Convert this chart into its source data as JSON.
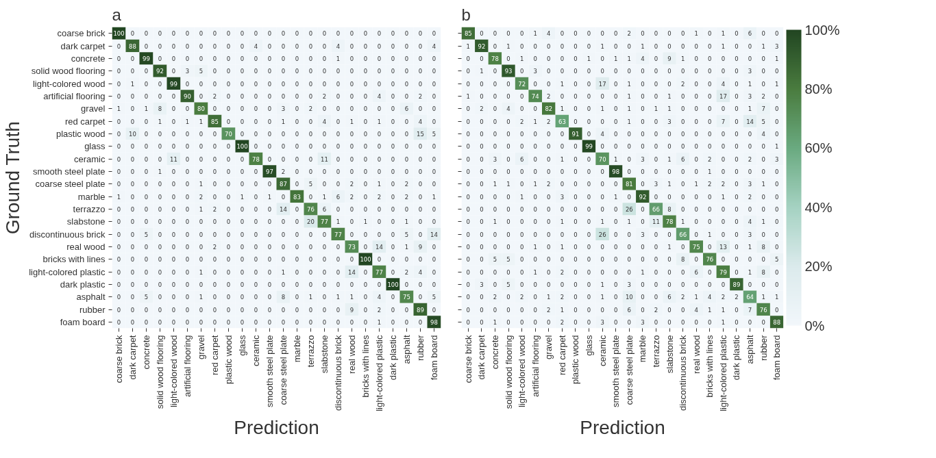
{
  "chart_data": [
    {
      "type": "heatmap",
      "title": "a",
      "xlabel": "Prediction",
      "ylabel": "Ground Truth",
      "data_labels": true,
      "categories": [
        "coarse brick",
        "dark carpet",
        "concrete",
        "solid wood flooring",
        "light-colored wood",
        "artificial flooring",
        "gravel",
        "red carpet",
        "plastic wood",
        "glass",
        "ceramic",
        "smooth steel plate",
        "coarse steel plate",
        "marble",
        "terrazzo",
        "slabstone",
        "discontinuous brick",
        "real wood",
        "bricks with lines",
        "light-colored plastic",
        "dark plastic",
        "asphalt",
        "rubber",
        "foam board"
      ],
      "y_categories": [
        "coarse brick",
        "dark carpet",
        "concrete",
        "solid wood flooring",
        "light-colored wood",
        "artificial flooring",
        "gravel",
        "red carpet",
        "plastic wood",
        "glass",
        "ceramic",
        "smooth steel plate",
        "coarse steel plate",
        "marble",
        "terrazzo",
        "slabstone",
        "discontinuous brick",
        "real wood",
        "bricks with lines",
        "light-colored plastic",
        "dark plastic",
        "asphalt",
        "rubber",
        "foam board"
      ],
      "cells": [
        [
          100,
          0,
          0,
          0,
          0,
          0,
          0,
          0,
          0,
          0,
          0,
          0,
          0,
          0,
          0,
          0,
          0,
          0,
          0,
          0,
          0,
          0,
          0,
          0
        ],
        [
          0,
          88,
          0,
          0,
          0,
          0,
          0,
          0,
          0,
          0,
          4,
          0,
          0,
          0,
          0,
          0,
          4,
          0,
          0,
          0,
          0,
          0,
          0,
          4
        ],
        [
          0,
          0,
          99,
          0,
          0,
          0,
          0,
          0,
          0,
          0,
          0,
          0,
          0,
          0,
          0,
          0,
          1,
          0,
          0,
          0,
          0,
          0,
          0,
          0
        ],
        [
          0,
          0,
          0,
          92,
          0,
          3,
          5,
          0,
          0,
          0,
          0,
          0,
          0,
          0,
          0,
          0,
          0,
          0,
          0,
          0,
          0,
          0,
          0,
          0
        ],
        [
          0,
          1,
          0,
          0,
          99,
          0,
          0,
          0,
          0,
          0,
          0,
          0,
          0,
          0,
          0,
          0,
          0,
          0,
          0,
          0,
          0,
          0,
          0,
          0
        ],
        [
          0,
          0,
          0,
          0,
          0,
          90,
          0,
          2,
          0,
          0,
          0,
          0,
          0,
          0,
          0,
          2,
          0,
          0,
          0,
          4,
          0,
          0,
          2,
          0
        ],
        [
          1,
          0,
          1,
          8,
          0,
          0,
          80,
          0,
          0,
          0,
          0,
          0,
          3,
          0,
          2,
          0,
          0,
          0,
          0,
          0,
          0,
          6,
          0,
          0
        ],
        [
          0,
          0,
          0,
          1,
          0,
          1,
          1,
          85,
          0,
          0,
          0,
          0,
          1,
          0,
          0,
          4,
          0,
          1,
          0,
          1,
          0,
          0,
          4,
          0
        ],
        [
          0,
          10,
          0,
          0,
          0,
          0,
          0,
          0,
          70,
          0,
          0,
          0,
          0,
          0,
          0,
          0,
          0,
          0,
          0,
          0,
          0,
          0,
          15,
          5
        ],
        [
          0,
          0,
          0,
          0,
          0,
          0,
          0,
          0,
          0,
          100,
          0,
          0,
          0,
          0,
          0,
          0,
          0,
          0,
          0,
          0,
          0,
          0,
          0,
          0
        ],
        [
          0,
          0,
          0,
          0,
          11,
          0,
          0,
          0,
          0,
          0,
          78,
          0,
          0,
          0,
          0,
          11,
          0,
          0,
          0,
          0,
          0,
          0,
          0,
          0
        ],
        [
          0,
          0,
          0,
          1,
          0,
          0,
          0,
          0,
          0,
          0,
          0,
          97,
          2,
          0,
          0,
          0,
          0,
          0,
          0,
          0,
          0,
          0,
          0,
          0
        ],
        [
          0,
          0,
          0,
          0,
          0,
          0,
          1,
          0,
          0,
          0,
          0,
          0,
          87,
          0,
          5,
          0,
          0,
          2,
          0,
          1,
          0,
          2,
          0,
          0
        ],
        [
          1,
          0,
          0,
          0,
          0,
          0,
          2,
          0,
          0,
          1,
          0,
          1,
          0,
          83,
          0,
          1,
          6,
          2,
          0,
          2,
          0,
          2,
          0,
          1
        ],
        [
          0,
          0,
          0,
          0,
          0,
          0,
          1,
          2,
          0,
          0,
          0,
          0,
          14,
          0,
          76,
          6,
          0,
          0,
          0,
          0,
          0,
          0,
          0,
          0
        ],
        [
          0,
          0,
          0,
          0,
          0,
          0,
          0,
          0,
          0,
          0,
          0,
          0,
          0,
          0,
          20,
          77,
          1,
          0,
          1,
          0,
          0,
          1,
          0,
          0
        ],
        [
          0,
          0,
          5,
          0,
          0,
          0,
          0,
          0,
          0,
          0,
          0,
          0,
          0,
          0,
          0,
          0,
          77,
          0,
          0,
          0,
          0,
          5,
          0,
          14
        ],
        [
          0,
          0,
          0,
          0,
          0,
          0,
          0,
          2,
          0,
          0,
          0,
          0,
          0,
          0,
          0,
          0,
          0,
          73,
          0,
          14,
          0,
          1,
          9,
          0
        ],
        [
          0,
          0,
          0,
          0,
          0,
          0,
          0,
          0,
          0,
          0,
          0,
          0,
          0,
          0,
          0,
          0,
          0,
          0,
          100,
          0,
          0,
          0,
          0,
          0
        ],
        [
          0,
          0,
          0,
          0,
          0,
          0,
          1,
          0,
          0,
          0,
          0,
          0,
          1,
          0,
          0,
          0,
          0,
          14,
          0,
          77,
          0,
          2,
          4,
          0
        ],
        [
          0,
          0,
          0,
          0,
          0,
          0,
          0,
          0,
          0,
          0,
          0,
          0,
          0,
          0,
          0,
          0,
          0,
          0,
          0,
          0,
          100,
          0,
          0,
          0
        ],
        [
          0,
          0,
          5,
          0,
          0,
          0,
          1,
          0,
          0,
          0,
          0,
          0,
          8,
          0,
          1,
          0,
          1,
          1,
          0,
          4,
          0,
          75,
          0,
          5
        ],
        [
          0,
          0,
          0,
          0,
          0,
          0,
          0,
          0,
          0,
          0,
          0,
          0,
          0,
          0,
          0,
          0,
          0,
          9,
          0,
          2,
          0,
          0,
          89,
          0
        ],
        [
          0,
          0,
          0,
          0,
          0,
          0,
          0,
          0,
          0,
          0,
          0,
          0,
          0,
          0,
          0,
          0,
          0,
          0,
          0,
          1,
          0,
          0,
          0,
          98
        ]
      ]
    },
    {
      "type": "heatmap",
      "title": "b",
      "xlabel": "Prediction",
      "data_labels": true,
      "tick_labels": "x",
      "categories": [
        "coarse brick",
        "dark carpet",
        "concrete",
        "solid wood flooring",
        "light-colored wood",
        "artificial flooring",
        "gravel",
        "red carpet",
        "plastic wood",
        "glass",
        "ceramic",
        "smooth steel plate",
        "coarse steel plate",
        "marble",
        "terrazzo",
        "slabstone",
        "discontinuous brick",
        "real wood",
        "bricks with lines",
        "light-colored plastic",
        "dark plastic",
        "asphalt",
        "rubber",
        "foam board"
      ],
      "y_categories": [
        null,
        null,
        null,
        null,
        null,
        null,
        null,
        null,
        null,
        null,
        null,
        null,
        null,
        null,
        null,
        null,
        null,
        null,
        null,
        null,
        null,
        null,
        null,
        null
      ],
      "clim": [
        0,
        100
      ],
      "cticks": [
        {
          "value": 0,
          "label": "0%"
        },
        {
          "value": 20,
          "label": "20%"
        },
        {
          "value": 40,
          "label": "40%"
        },
        {
          "value": 60,
          "label": "60%"
        },
        {
          "value": 80,
          "label": "80%"
        },
        {
          "value": 100,
          "label": "100%"
        }
      ],
      "cells": [
        [
          85,
          0,
          0,
          0,
          0,
          1,
          4,
          0,
          0,
          0,
          0,
          0,
          2,
          0,
          0,
          0,
          0,
          1,
          0,
          1,
          0,
          6,
          0,
          0
        ],
        [
          1,
          92,
          0,
          1,
          0,
          0,
          0,
          0,
          0,
          0,
          1,
          0,
          0,
          1,
          0,
          0,
          0,
          0,
          0,
          1,
          0,
          0,
          1,
          3
        ],
        [
          0,
          0,
          78,
          0,
          1,
          0,
          0,
          0,
          0,
          1,
          0,
          1,
          1,
          4,
          0,
          9,
          1,
          0,
          0,
          0,
          0,
          0,
          0,
          1
        ],
        [
          0,
          1,
          0,
          93,
          0,
          3,
          0,
          0,
          0,
          0,
          0,
          0,
          0,
          0,
          0,
          0,
          0,
          0,
          0,
          0,
          0,
          3,
          0,
          0
        ],
        [
          0,
          0,
          0,
          0,
          72,
          0,
          0,
          1,
          0,
          0,
          17,
          0,
          1,
          0,
          0,
          0,
          2,
          0,
          0,
          4,
          0,
          1,
          0,
          1
        ],
        [
          1,
          0,
          0,
          0,
          0,
          74,
          2,
          0,
          0,
          0,
          0,
          0,
          1,
          0,
          0,
          1,
          0,
          0,
          0,
          17,
          0,
          3,
          2,
          0
        ],
        [
          0,
          2,
          0,
          4,
          0,
          0,
          82,
          1,
          0,
          0,
          1,
          0,
          1,
          0,
          1,
          1,
          0,
          0,
          0,
          0,
          0,
          1,
          7,
          0
        ],
        [
          0,
          0,
          0,
          0,
          2,
          1,
          2,
          63,
          0,
          0,
          0,
          0,
          1,
          0,
          0,
          3,
          0,
          0,
          0,
          7,
          0,
          14,
          5,
          0
        ],
        [
          0,
          0,
          0,
          0,
          0,
          0,
          0,
          0,
          91,
          0,
          4,
          0,
          0,
          0,
          0,
          0,
          0,
          0,
          0,
          0,
          0,
          0,
          4,
          0
        ],
        [
          0,
          0,
          0,
          0,
          0,
          0,
          0,
          0,
          0,
          99,
          0,
          0,
          0,
          0,
          0,
          0,
          0,
          0,
          0,
          0,
          0,
          0,
          0,
          1
        ],
        [
          0,
          0,
          3,
          0,
          6,
          0,
          0,
          1,
          0,
          0,
          70,
          1,
          0,
          3,
          0,
          1,
          6,
          0,
          2,
          0,
          0,
          2,
          0,
          3
        ],
        [
          0,
          0,
          0,
          0,
          0,
          0,
          0,
          0,
          0,
          0,
          0,
          98,
          0,
          0,
          0,
          0,
          0,
          0,
          1,
          0,
          0,
          0,
          0,
          0
        ],
        [
          0,
          0,
          1,
          1,
          0,
          1,
          2,
          0,
          0,
          0,
          0,
          0,
          81,
          0,
          3,
          1,
          0,
          1,
          2,
          2,
          0,
          3,
          1,
          0
        ],
        [
          0,
          0,
          0,
          0,
          1,
          0,
          0,
          3,
          0,
          0,
          0,
          1,
          0,
          92,
          0,
          0,
          0,
          0,
          0,
          1,
          0,
          2,
          0,
          0
        ],
        [
          0,
          0,
          0,
          0,
          0,
          0,
          0,
          0,
          0,
          0,
          0,
          0,
          26,
          0,
          66,
          8,
          0,
          0,
          0,
          0,
          0,
          0,
          0,
          0
        ],
        [
          0,
          0,
          1,
          0,
          0,
          0,
          0,
          1,
          0,
          0,
          1,
          0,
          1,
          0,
          11,
          78,
          1,
          0,
          0,
          0,
          0,
          4,
          1,
          0
        ],
        [
          0,
          0,
          0,
          0,
          0,
          0,
          0,
          0,
          0,
          0,
          26,
          0,
          0,
          3,
          0,
          0,
          66,
          0,
          1,
          0,
          0,
          3,
          0,
          0
        ],
        [
          0,
          0,
          0,
          0,
          0,
          1,
          0,
          1,
          0,
          0,
          0,
          0,
          0,
          0,
          0,
          1,
          0,
          75,
          0,
          13,
          0,
          1,
          8,
          0
        ],
        [
          0,
          0,
          5,
          5,
          0,
          0,
          0,
          0,
          0,
          0,
          0,
          0,
          0,
          0,
          0,
          0,
          8,
          0,
          76,
          0,
          0,
          0,
          0,
          5
        ],
        [
          0,
          0,
          0,
          0,
          0,
          1,
          0,
          2,
          0,
          0,
          0,
          0,
          0,
          1,
          0,
          0,
          0,
          6,
          0,
          79,
          0,
          1,
          8,
          0
        ],
        [
          0,
          3,
          0,
          5,
          0,
          0,
          0,
          0,
          0,
          0,
          1,
          0,
          3,
          0,
          0,
          0,
          0,
          0,
          0,
          0,
          89,
          0,
          0,
          0
        ],
        [
          0,
          0,
          2,
          0,
          2,
          0,
          1,
          2,
          0,
          0,
          1,
          0,
          10,
          0,
          0,
          6,
          2,
          1,
          4,
          2,
          2,
          64,
          1,
          1
        ],
        [
          0,
          0,
          0,
          0,
          0,
          0,
          2,
          1,
          0,
          0,
          0,
          0,
          6,
          0,
          2,
          0,
          0,
          4,
          1,
          1,
          0,
          7,
          76,
          0
        ],
        [
          0,
          0,
          1,
          0,
          0,
          0,
          0,
          2,
          0,
          0,
          3,
          0,
          0,
          3,
          0,
          0,
          0,
          0,
          0,
          1,
          0,
          0,
          0,
          88
        ]
      ]
    }
  ]
}
